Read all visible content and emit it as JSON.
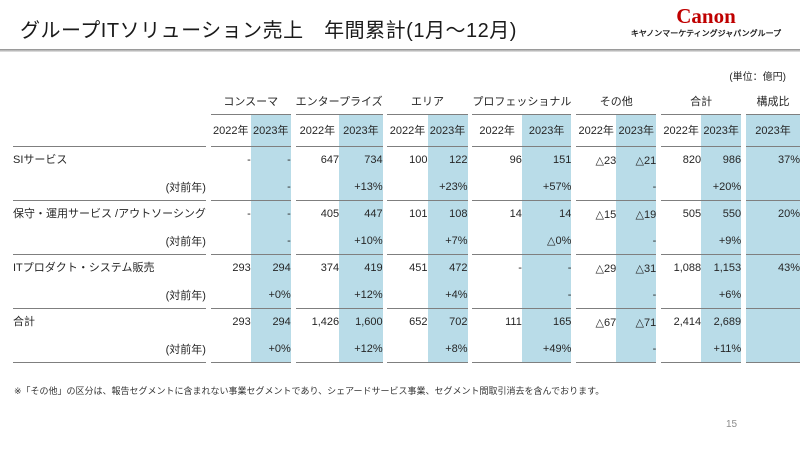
{
  "page": {
    "title": "グループITソリューション売上　年間累計(1月～12月)",
    "unit_note": "(単位：億円)",
    "footnote": "※「その他」の区分は、報告セグメントに含まれない事業セグメントであり、シェアードサービス事業、セグメント間取引消去を含んでおります。",
    "page_number": "15"
  },
  "logo": {
    "brand": "Canon",
    "brand_color": "#bf0000",
    "company": "キヤノンマーケティングジャパングループ"
  },
  "table": {
    "highlight_color": "#b9dce8",
    "groups": [
      "コンスーマ",
      "エンタープライズ",
      "エリア",
      "プロフェッショナル",
      "その他",
      "合計"
    ],
    "ratio_header": "構成比",
    "year_2022": "2022年",
    "year_2023": "2023年",
    "yoy_label": "(対前年)",
    "rows": [
      {
        "label": "SIサービス",
        "values": [
          "-",
          "-",
          "647",
          "734",
          "100",
          "122",
          "96",
          "151",
          "△23",
          "△21",
          "820",
          "986"
        ],
        "yoy": [
          "",
          "-",
          "",
          "+13%",
          "",
          "+23%",
          "",
          "+57%",
          "",
          "-",
          "",
          "+20%"
        ],
        "ratio": "37%"
      },
      {
        "label": "保守・運用サービス\n/アウトソーシング",
        "values": [
          "-",
          "-",
          "405",
          "447",
          "101",
          "108",
          "14",
          "14",
          "△15",
          "△19",
          "505",
          "550"
        ],
        "yoy": [
          "",
          "-",
          "",
          "+10%",
          "",
          "+7%",
          "",
          "△0%",
          "",
          "-",
          "",
          "+9%"
        ],
        "ratio": "20%"
      },
      {
        "label": "ITプロダクト・システム販売",
        "values": [
          "293",
          "294",
          "374",
          "419",
          "451",
          "472",
          "-",
          "-",
          "△29",
          "△31",
          "1,088",
          "1,153"
        ],
        "yoy": [
          "",
          "+0%",
          "",
          "+12%",
          "",
          "+4%",
          "",
          "-",
          "",
          "-",
          "",
          "+6%"
        ],
        "ratio": "43%"
      },
      {
        "label": "合計",
        "values": [
          "293",
          "294",
          "1,426",
          "1,600",
          "652",
          "702",
          "111",
          "165",
          "△67",
          "△71",
          "2,414",
          "2,689"
        ],
        "yoy": [
          "",
          "+0%",
          "",
          "+12%",
          "",
          "+8%",
          "",
          "+49%",
          "",
          "-",
          "",
          "+11%"
        ],
        "ratio": ""
      }
    ]
  }
}
